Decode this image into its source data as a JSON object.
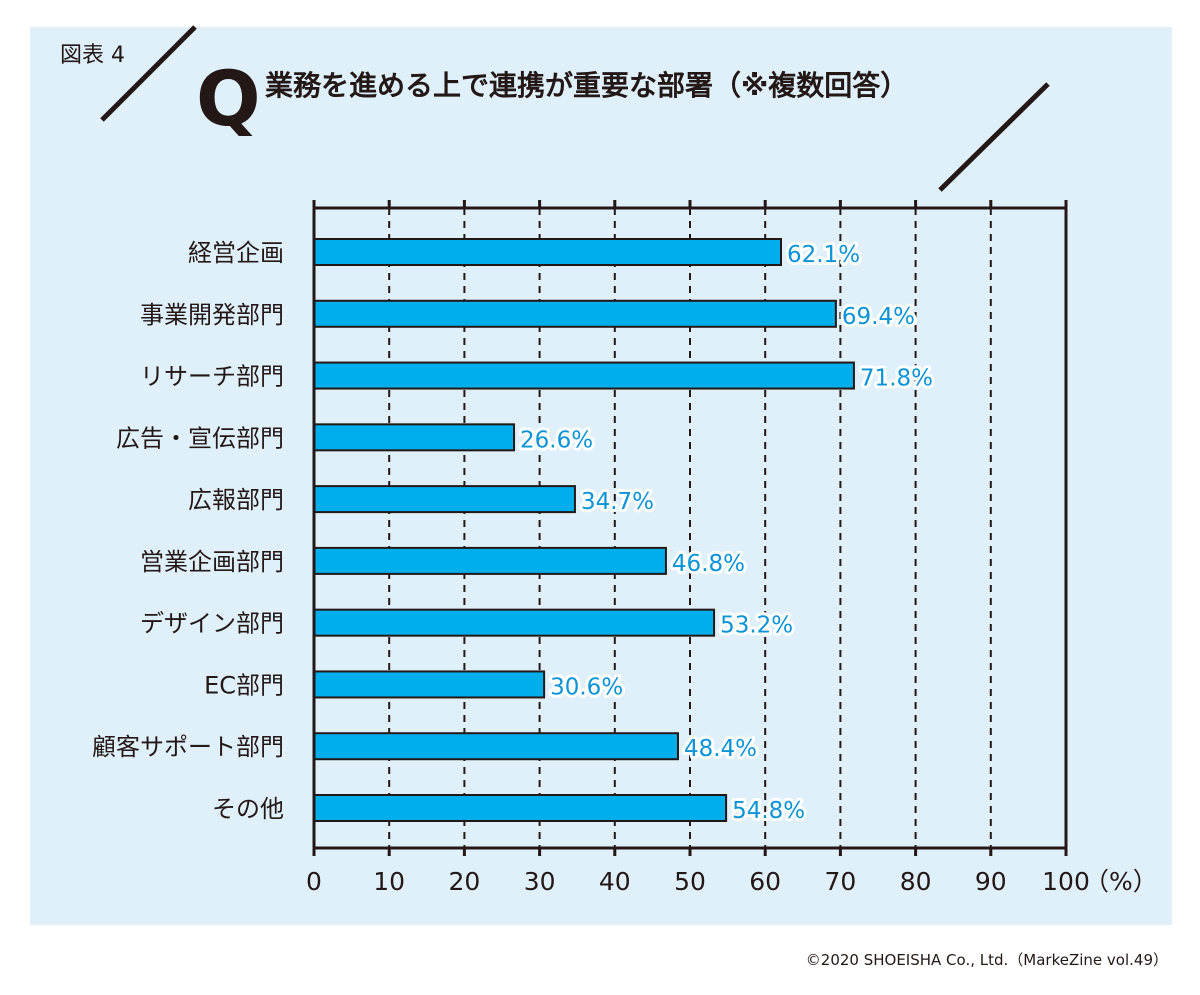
{
  "chart_data": {
    "type": "bar",
    "orientation": "horizontal",
    "figure_label": "図表 4",
    "q_mark": "Q",
    "title": "業務を進める上で連携が重要な部署（※複数回答）",
    "categories": [
      "経営企画",
      "事業開発部門",
      "リサーチ部門",
      "広告・宣伝部門",
      "広報部門",
      "営業企画部門",
      "デザイン部門",
      "EC部門",
      "顧客サポート部門",
      "その他"
    ],
    "values": [
      62.1,
      69.4,
      71.8,
      26.6,
      34.7,
      46.8,
      53.2,
      30.6,
      48.4,
      54.8
    ],
    "value_labels": [
      "62.1%",
      "69.4%",
      "71.8%",
      "26.6%",
      "34.7%",
      "46.8%",
      "53.2%",
      "30.6%",
      "48.4%",
      "54.8%"
    ],
    "xlim": [
      0,
      100
    ],
    "xticks": [
      "0",
      "10",
      "20",
      "30",
      "40",
      "50",
      "60",
      "70",
      "80",
      "90",
      "100"
    ],
    "xunit": "（%）",
    "grid": "dashed vertical",
    "colors": {
      "bar": "#00aeeb",
      "background": "#dff0fa",
      "value_text": "#0a94d8"
    }
  },
  "footer": {
    "copyright": "©2020 SHOEISHA Co., Ltd.（MarkeZine vol.49）"
  }
}
